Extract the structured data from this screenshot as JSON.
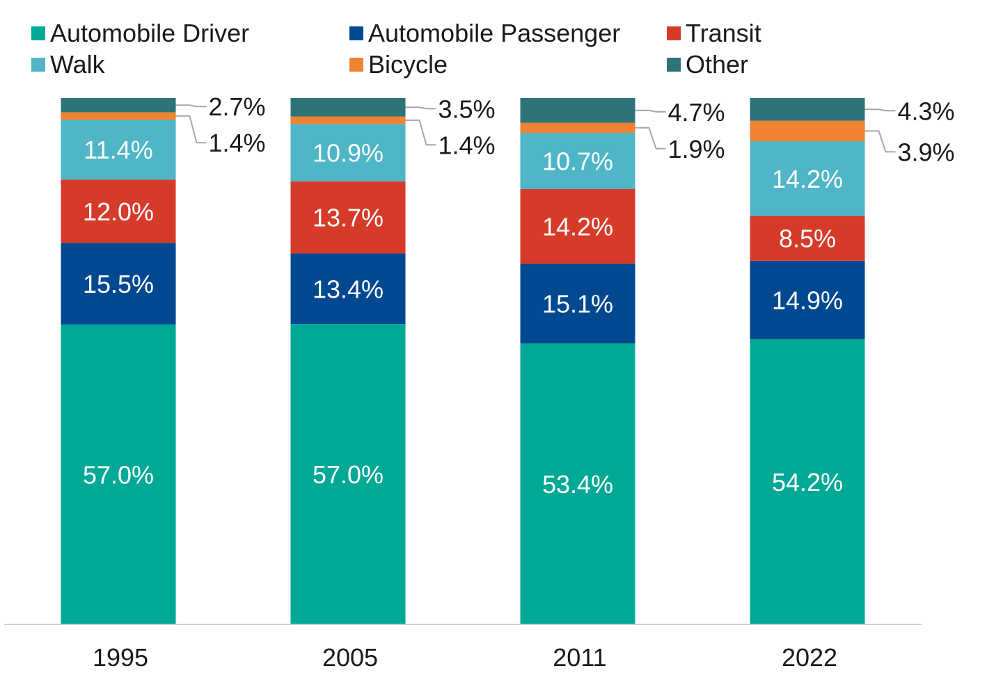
{
  "chart_data": {
    "type": "bar",
    "stacked": true,
    "title": "",
    "xlabel": "",
    "ylabel": "",
    "ylim": [
      0,
      100
    ],
    "categories": [
      "1995",
      "2005",
      "2011",
      "2022"
    ],
    "legend_position": "top",
    "series": [
      {
        "name": "Automobile Driver",
        "color": "#00A896",
        "values": [
          57.0,
          57.0,
          53.4,
          54.2
        ],
        "labels": [
          "57.0%",
          "57.0%",
          "53.4%",
          "54.2%"
        ]
      },
      {
        "name": "Automobile Passenger",
        "color": "#004990",
        "values": [
          15.5,
          13.4,
          15.1,
          14.9
        ],
        "labels": [
          "15.5%",
          "13.4%",
          "15.1%",
          "14.9%"
        ]
      },
      {
        "name": "Transit",
        "color": "#D63B2A",
        "values": [
          12.0,
          13.7,
          14.2,
          8.5
        ],
        "labels": [
          "12.0%",
          "13.7%",
          "14.2%",
          "8.5%"
        ]
      },
      {
        "name": "Walk",
        "color": "#4EB6C6",
        "values": [
          11.4,
          10.9,
          10.7,
          14.2
        ],
        "labels": [
          "11.4%",
          "10.9%",
          "10.7%",
          "14.2%"
        ]
      },
      {
        "name": "Bicycle",
        "color": "#F08232",
        "values": [
          1.4,
          1.4,
          1.9,
          3.9
        ],
        "labels": [
          "1.4%",
          "1.4%",
          "1.9%",
          "3.9%"
        ]
      },
      {
        "name": "Other",
        "color": "#2E7378",
        "values": [
          2.7,
          3.5,
          4.7,
          4.3
        ],
        "labels": [
          "2.7%",
          "3.5%",
          "4.7%",
          "4.3%"
        ]
      }
    ]
  }
}
